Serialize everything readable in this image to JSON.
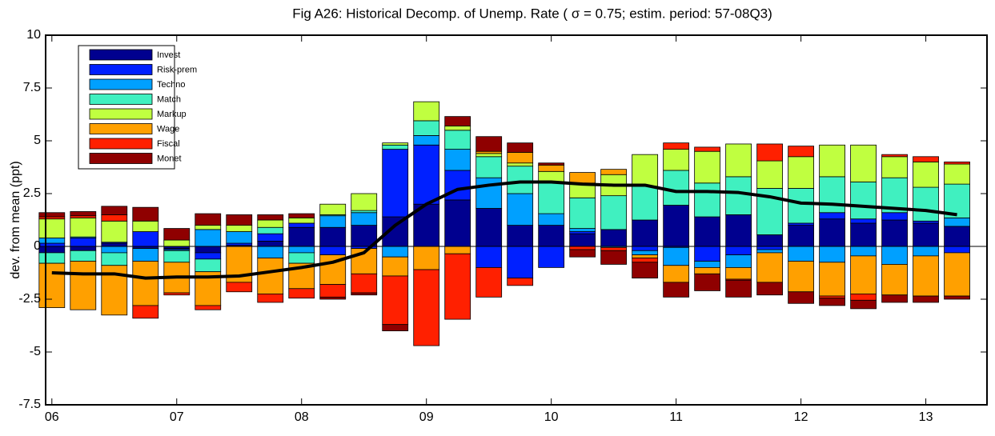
{
  "chart_data": {
    "type": "bar",
    "stacked": true,
    "title": "Fig A26: Historical Decomp. of Unemp. Rate (     σ =  0.75; estim. period: 57-08Q3)",
    "y_label": "dev. from mean (ppt)",
    "x": [
      2006,
      2006.25,
      2006.5,
      2006.75,
      2007,
      2007.25,
      2007.5,
      2007.75,
      2008,
      2008.25,
      2008.5,
      2008.75,
      2009,
      2009.25,
      2009.5,
      2009.75,
      2010,
      2010.25,
      2010.5,
      2010.75,
      2011,
      2011.25,
      2011.5,
      2011.75,
      2012,
      2012.25,
      2012.5,
      2012.75,
      2013,
      2013.25
    ],
    "xlim": [
      2005.95,
      2013.49
    ],
    "xticks": [
      {
        "value": 2006,
        "label": "06"
      },
      {
        "value": 2007,
        "label": "07"
      },
      {
        "value": 2008,
        "label": "08"
      },
      {
        "value": 2009,
        "label": "09"
      },
      {
        "value": 2010,
        "label": "10"
      },
      {
        "value": 2011,
        "label": "11"
      },
      {
        "value": 2012,
        "label": "12"
      },
      {
        "value": 2013,
        "label": "13"
      }
    ],
    "ylim": [
      -7.5,
      10
    ],
    "yticks": [
      -7.5,
      -5,
      -2.5,
      0,
      2.5,
      5,
      7.5,
      10
    ],
    "legend": "upper left",
    "series": [
      {
        "name": "Invest",
        "color": "#00008f",
        "values": [
          -0.3,
          -0.2,
          0.15,
          -0.1,
          -0.1,
          -0.3,
          0.05,
          0.25,
          0.9,
          0.9,
          1.0,
          1.4,
          2.0,
          2.2,
          1.8,
          1.0,
          1.0,
          0.6,
          0.8,
          1.25,
          1.95,
          1.4,
          1.5,
          0.55,
          1.0,
          1.3,
          1.1,
          1.25,
          1.1,
          0.95
        ]
      },
      {
        "name": "Risk-prem",
        "color": "#0020ff",
        "values": [
          0.15,
          0.4,
          0.05,
          0.7,
          -0.05,
          -0.3,
          0.1,
          0.35,
          0.2,
          -0.4,
          -0.1,
          3.2,
          2.8,
          1.4,
          -1.0,
          -1.5,
          -1.0,
          0.1,
          0,
          -0.2,
          -0.05,
          -0.7,
          -0.4,
          -0.15,
          0.1,
          0.3,
          0.2,
          0.35,
          0.1,
          -0.3
        ]
      },
      {
        "name": "Techno",
        "color": "#00a0ff",
        "values": [
          0.25,
          0.05,
          -0.3,
          -0.6,
          -0.05,
          0.8,
          0.55,
          -0.55,
          -0.3,
          0.55,
          0.6,
          -0.5,
          0.45,
          1.0,
          1.45,
          1.5,
          0.55,
          0.15,
          -0.05,
          -0.2,
          -0.85,
          -0.3,
          -0.6,
          -0.15,
          -0.7,
          -0.75,
          -0.45,
          -0.85,
          -0.45,
          0.4
        ]
      },
      {
        "name": "Match",
        "color": "#40f0c0",
        "values": [
          -0.5,
          -0.5,
          -0.6,
          0,
          -0.55,
          -0.6,
          0,
          0.3,
          -0.5,
          0.05,
          0.1,
          0.2,
          0.7,
          0.9,
          1.0,
          1.3,
          1.5,
          1.45,
          1.6,
          1.6,
          1.65,
          1.6,
          1.8,
          2.2,
          1.65,
          1.7,
          1.75,
          1.65,
          1.6,
          1.6
        ]
      },
      {
        "name": "Markup",
        "color": "#c0ff40",
        "values": [
          0.9,
          0.9,
          1.0,
          0.5,
          0.3,
          0.2,
          0.3,
          0.35,
          0.25,
          0.5,
          0.8,
          0.1,
          0.9,
          0.2,
          0.15,
          0.15,
          0.5,
          0.7,
          1.0,
          1.5,
          1.0,
          1.5,
          1.55,
          1.3,
          1.5,
          1.5,
          1.75,
          1.0,
          1.2,
          0.95
        ]
      },
      {
        "name": "Wage",
        "color": "#ffa000",
        "values": [
          -2.1,
          -2.3,
          -2.35,
          -2.1,
          -1.45,
          -1.6,
          -1.7,
          -1.7,
          -1.2,
          -1.4,
          -1.2,
          -0.9,
          -1.1,
          -0.35,
          0.1,
          0.5,
          0.3,
          0.5,
          0.25,
          -0.15,
          -0.8,
          -0.3,
          -0.55,
          -1.4,
          -1.45,
          -1.6,
          -1.8,
          -1.45,
          -1.9,
          -2.05
        ]
      },
      {
        "name": "Fiscal",
        "color": "#ff2000",
        "values": [
          0.1,
          0.1,
          0.3,
          -0.6,
          -0.1,
          -0.2,
          -0.45,
          -0.4,
          -0.45,
          -0.6,
          -0.9,
          -2.3,
          -3.6,
          -3.1,
          -1.4,
          -0.35,
          0,
          -0.15,
          -0.15,
          -0.2,
          0.3,
          0.2,
          -0.05,
          0.8,
          0.5,
          -0.1,
          -0.3,
          0.1,
          0.25,
          0.1
        ]
      },
      {
        "name": "Monet",
        "color": "#8f0000",
        "values": [
          0.2,
          0.2,
          0.4,
          0.65,
          0.55,
          0.55,
          0.5,
          0.25,
          0.2,
          -0.1,
          -0.1,
          -0.3,
          0,
          0.45,
          0.7,
          0.45,
          0.1,
          -0.35,
          -0.65,
          -0.75,
          -0.7,
          -0.8,
          -0.8,
          -0.6,
          -0.55,
          -0.35,
          -0.4,
          -0.35,
          -0.3,
          -0.15
        ]
      }
    ],
    "line": {
      "color": "#000000",
      "values": [
        -1.25,
        -1.3,
        -1.3,
        -1.5,
        -1.45,
        -1.45,
        -1.4,
        -1.2,
        -1.0,
        -0.75,
        -0.3,
        1.0,
        2.0,
        2.7,
        2.9,
        3.05,
        3.05,
        2.95,
        2.9,
        2.9,
        2.6,
        2.6,
        2.55,
        2.35,
        2.05,
        2.0,
        1.9,
        1.8,
        1.7,
        1.5
      ]
    }
  }
}
